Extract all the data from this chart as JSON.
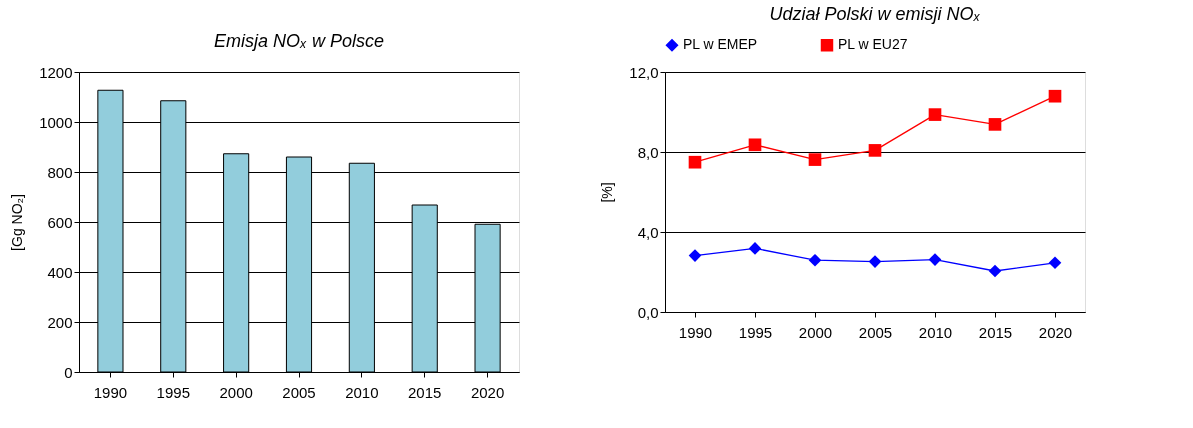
{
  "chart_data": [
    {
      "type": "bar",
      "title": "Emisja NOₓ w Polsce",
      "ylabel": "[Gg NO₂]",
      "categories": [
        "1990",
        "1995",
        "2000",
        "2005",
        "2010",
        "2015",
        "2020"
      ],
      "series": [
        {
          "color": "#92cddc",
          "values": [
            1127,
            1085,
            873,
            860,
            835,
            668,
            591
          ]
        }
      ],
      "ylim": [
        0,
        1200
      ],
      "yticks": [
        0,
        200,
        400,
        600,
        800,
        1000,
        1200
      ],
      "grid": "y"
    },
    {
      "type": "line",
      "title": "Udział Polski w emisji NOₓ",
      "ylabel": "[%]",
      "categories": [
        "1990",
        "1995",
        "2000",
        "2005",
        "2010",
        "2015",
        "2020"
      ],
      "series": [
        {
          "name": "PL w EMEP",
          "color": "#0000ff",
          "marker": "diamond",
          "values": [
            2.82,
            3.18,
            2.59,
            2.52,
            2.62,
            2.05,
            2.46
          ]
        },
        {
          "name": "PL w EU27",
          "color": "#ff0000",
          "marker": "square",
          "values": [
            7.49,
            8.36,
            7.62,
            8.08,
            9.87,
            9.38,
            10.79
          ]
        }
      ],
      "ylim": [
        0,
        12
      ],
      "yticks": [
        {
          "value": 0,
          "label": "0,0"
        },
        {
          "value": 4,
          "label": "4,0"
        },
        {
          "value": 8,
          "label": "8,0"
        },
        {
          "value": 12,
          "label": "12,0"
        }
      ],
      "grid": "y",
      "legend": "top"
    }
  ]
}
